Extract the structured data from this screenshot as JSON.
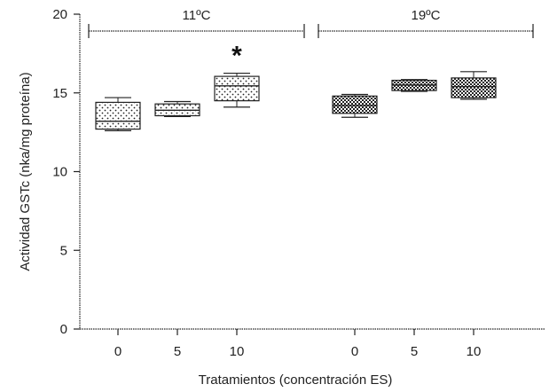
{
  "chart_data": {
    "type": "box",
    "xlabel": "Tratamientos (concentración ES)",
    "ylabel": "Actividad GSTc (nka/mg proteína)",
    "ylim": [
      0,
      20
    ],
    "yticks": [
      "0",
      "5",
      "10",
      "15",
      "20"
    ],
    "grid": false,
    "groups": [
      {
        "label": "11ºC",
        "categories": [
          0,
          1,
          2
        ]
      },
      {
        "label": "19ºC",
        "categories": [
          3,
          4,
          5
        ]
      }
    ],
    "categories": [
      "0",
      "5",
      "10",
      "0",
      "5",
      "10"
    ],
    "boxes": [
      {
        "category": "0",
        "group": "11ºC",
        "min": 12.6,
        "q1": 12.7,
        "median": 13.2,
        "q3": 14.4,
        "max": 14.7,
        "pattern": "dots"
      },
      {
        "category": "5",
        "group": "11ºC",
        "min": 13.5,
        "q1": 13.55,
        "median": 13.9,
        "q3": 14.3,
        "max": 14.45,
        "pattern": "dots"
      },
      {
        "category": "10",
        "group": "11ºC",
        "min": 14.1,
        "q1": 14.5,
        "median": 15.45,
        "q3": 16.05,
        "max": 16.25,
        "pattern": "dots",
        "annotation": "*"
      },
      {
        "category": "0",
        "group": "19ºC",
        "min": 13.45,
        "q1": 13.7,
        "median": 14.2,
        "q3": 14.8,
        "max": 14.9,
        "pattern": "checker"
      },
      {
        "category": "5",
        "group": "19ºC",
        "min": 15.1,
        "q1": 15.15,
        "median": 15.5,
        "q3": 15.8,
        "max": 15.85,
        "pattern": "checker"
      },
      {
        "category": "10",
        "group": "19ºC",
        "min": 14.6,
        "q1": 14.7,
        "median": 15.4,
        "q3": 15.95,
        "max": 16.35,
        "pattern": "checker"
      }
    ]
  }
}
